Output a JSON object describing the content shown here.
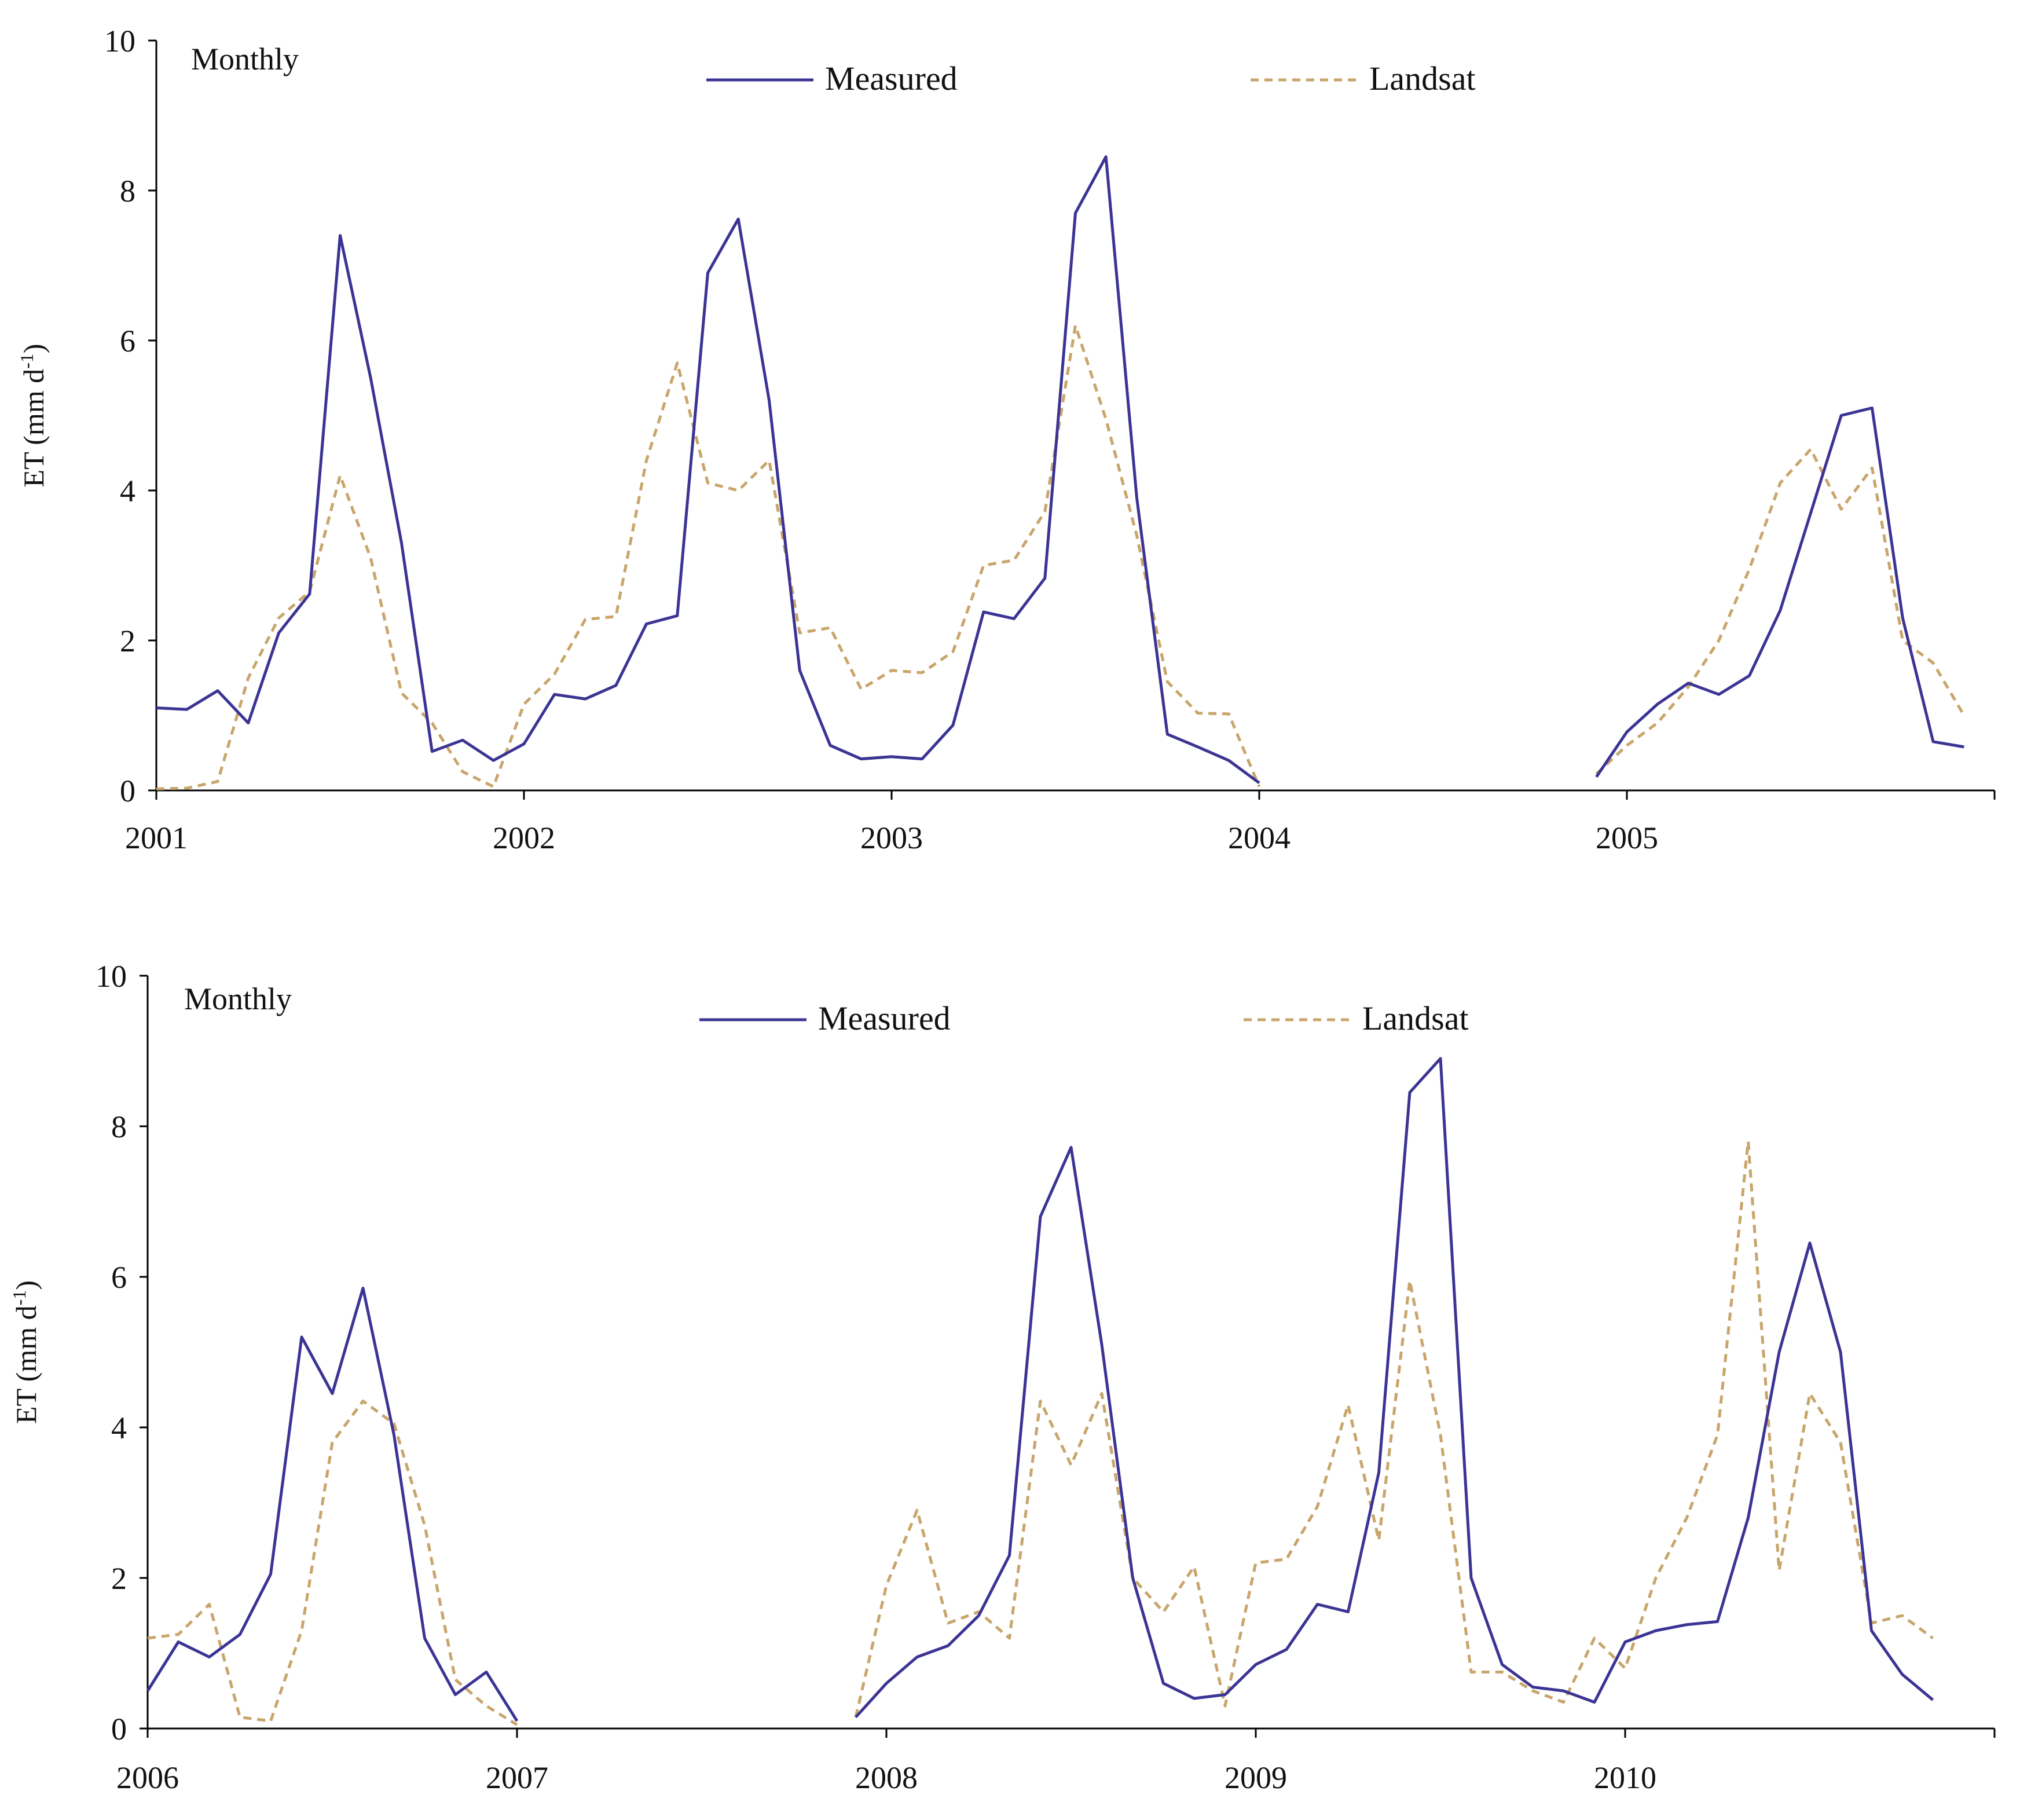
{
  "chart_data": [
    {
      "type": "line",
      "annotation": "Monthly",
      "ylabel": "ET (mm d",
      "ylabel_sup": "-1",
      "ylabel_close": ")",
      "ylim": [
        0,
        10
      ],
      "yticks": [
        0,
        2,
        4,
        6,
        8,
        10
      ],
      "xlim": [
        2001,
        2006
      ],
      "xticks": [
        2001,
        2002,
        2003,
        2004,
        2005
      ],
      "legend": [
        "Measured",
        "Landsat"
      ],
      "colors": {
        "Measured": "#3b3494",
        "Landsat": "#c8a56b"
      },
      "series": [
        {
          "name": "Measured",
          "style": "solid",
          "points": [
            [
              2001.0,
              1.1
            ],
            [
              2001.083,
              1.08
            ],
            [
              2001.167,
              1.33
            ],
            [
              2001.25,
              0.9
            ],
            [
              2001.333,
              2.1
            ],
            [
              2001.417,
              2.62
            ],
            [
              2001.5,
              7.4
            ],
            [
              2001.583,
              5.5
            ],
            [
              2001.667,
              3.3
            ],
            [
              2001.75,
              0.52
            ],
            [
              2001.833,
              0.67
            ],
            [
              2001.917,
              0.4
            ],
            [
              2002.0,
              0.62
            ],
            [
              2002.083,
              1.28
            ],
            [
              2002.167,
              1.22
            ],
            [
              2002.25,
              1.4
            ],
            [
              2002.333,
              2.22
            ],
            [
              2002.417,
              2.33
            ],
            [
              2002.5,
              6.9
            ],
            [
              2002.583,
              7.62
            ],
            [
              2002.667,
              5.2
            ],
            [
              2002.75,
              1.6
            ],
            [
              2002.833,
              0.6
            ],
            [
              2002.917,
              0.42
            ],
            [
              2003.0,
              0.45
            ],
            [
              2003.083,
              0.42
            ],
            [
              2003.167,
              0.87
            ],
            [
              2003.25,
              2.38
            ],
            [
              2003.333,
              2.29
            ],
            [
              2003.417,
              2.83
            ],
            [
              2003.5,
              7.7
            ],
            [
              2003.583,
              8.45
            ],
            [
              2003.667,
              3.9
            ],
            [
              2003.75,
              0.75
            ],
            [
              2003.833,
              0.58
            ],
            [
              2003.917,
              0.4
            ],
            [
              2004.0,
              0.1
            ],
            null,
            [
              2004.917,
              0.18
            ],
            [
              2005.0,
              0.78
            ],
            [
              2005.083,
              1.15
            ],
            [
              2005.167,
              1.43
            ],
            [
              2005.25,
              1.28
            ],
            [
              2005.333,
              1.53
            ],
            [
              2005.417,
              2.4
            ],
            [
              2005.5,
              3.7
            ],
            [
              2005.583,
              5.0
            ],
            [
              2005.667,
              5.1
            ],
            [
              2005.75,
              2.3
            ],
            [
              2005.833,
              0.65
            ],
            [
              2005.917,
              0.58
            ]
          ]
        },
        {
          "name": "Landsat",
          "style": "dashed",
          "points": [
            [
              2001.0,
              0.02
            ],
            [
              2001.083,
              0.03
            ],
            [
              2001.167,
              0.12
            ],
            [
              2001.25,
              1.5
            ],
            [
              2001.333,
              2.3
            ],
            [
              2001.417,
              2.65
            ],
            [
              2001.5,
              4.2
            ],
            [
              2001.583,
              3.1
            ],
            [
              2001.667,
              1.3
            ],
            [
              2001.75,
              0.9
            ],
            [
              2001.833,
              0.25
            ],
            [
              2001.917,
              0.05
            ],
            [
              2002.0,
              1.15
            ],
            [
              2002.083,
              1.55
            ],
            [
              2002.167,
              2.28
            ],
            [
              2002.25,
              2.32
            ],
            [
              2002.333,
              4.4
            ],
            [
              2002.417,
              5.7
            ],
            [
              2002.5,
              4.1
            ],
            [
              2002.583,
              4.0
            ],
            [
              2002.667,
              4.4
            ],
            [
              2002.75,
              2.1
            ],
            [
              2002.833,
              2.17
            ],
            [
              2002.917,
              1.35
            ],
            [
              2003.0,
              1.6
            ],
            [
              2003.083,
              1.57
            ],
            [
              2003.167,
              1.85
            ],
            [
              2003.25,
              3.0
            ],
            [
              2003.333,
              3.07
            ],
            [
              2003.417,
              3.72
            ],
            [
              2003.5,
              6.2
            ],
            [
              2003.583,
              4.95
            ],
            [
              2003.667,
              3.4
            ],
            [
              2003.75,
              1.45
            ],
            [
              2003.833,
              1.03
            ],
            [
              2003.917,
              1.02
            ],
            [
              2004.0,
              0.05
            ],
            null,
            [
              2004.917,
              0.22
            ],
            [
              2005.0,
              0.6
            ],
            [
              2005.083,
              0.9
            ],
            [
              2005.167,
              1.38
            ],
            [
              2005.25,
              2.0
            ],
            [
              2005.333,
              2.95
            ],
            [
              2005.417,
              4.1
            ],
            [
              2005.5,
              4.55
            ],
            [
              2005.583,
              3.75
            ],
            [
              2005.667,
              4.3
            ],
            [
              2005.75,
              2.0
            ],
            [
              2005.833,
              1.7
            ],
            [
              2005.917,
              1.0
            ]
          ]
        }
      ]
    },
    {
      "type": "line",
      "annotation": "Monthly",
      "ylabel": "ET (mm d",
      "ylabel_sup": "-1",
      "ylabel_close": ")",
      "ylim": [
        0,
        10
      ],
      "yticks": [
        0,
        2,
        4,
        6,
        8,
        10
      ],
      "xlim": [
        2006,
        2011
      ],
      "xticks": [
        2006,
        2007,
        2008,
        2009,
        2010
      ],
      "legend": [
        "Measured",
        "Landsat"
      ],
      "colors": {
        "Measured": "#3b3494",
        "Landsat": "#c8a56b"
      },
      "series": [
        {
          "name": "Measured",
          "style": "solid",
          "points": [
            [
              2006.0,
              0.5
            ],
            [
              2006.083,
              1.15
            ],
            [
              2006.167,
              0.95
            ],
            [
              2006.25,
              1.25
            ],
            [
              2006.333,
              2.05
            ],
            [
              2006.417,
              5.2
            ],
            [
              2006.5,
              4.45
            ],
            [
              2006.583,
              5.85
            ],
            [
              2006.667,
              3.9
            ],
            [
              2006.75,
              1.2
            ],
            [
              2006.833,
              0.45
            ],
            [
              2006.917,
              0.75
            ],
            [
              2007.0,
              0.1
            ],
            null,
            [
              2007.917,
              0.15
            ],
            [
              2008.0,
              0.6
            ],
            [
              2008.083,
              0.95
            ],
            [
              2008.167,
              1.1
            ],
            [
              2008.25,
              1.5
            ],
            [
              2008.333,
              2.3
            ],
            [
              2008.417,
              6.8
            ],
            [
              2008.5,
              7.72
            ],
            [
              2008.583,
              5.1
            ],
            [
              2008.667,
              2.0
            ],
            [
              2008.75,
              0.6
            ],
            [
              2008.833,
              0.4
            ],
            [
              2008.917,
              0.45
            ],
            [
              2009.0,
              0.85
            ],
            [
              2009.083,
              1.05
            ],
            [
              2009.167,
              1.65
            ],
            [
              2009.25,
              1.55
            ],
            [
              2009.333,
              3.4
            ],
            [
              2009.417,
              8.45
            ],
            [
              2009.5,
              8.9
            ],
            [
              2009.583,
              2.0
            ],
            [
              2009.667,
              0.85
            ],
            [
              2009.75,
              0.55
            ],
            [
              2009.833,
              0.5
            ],
            [
              2009.917,
              0.35
            ],
            [
              2010.0,
              1.15
            ],
            [
              2010.083,
              1.3
            ],
            [
              2010.167,
              1.38
            ],
            [
              2010.25,
              1.42
            ],
            [
              2010.333,
              2.8
            ],
            [
              2010.417,
              5.0
            ],
            [
              2010.5,
              6.45
            ],
            [
              2010.583,
              5.0
            ],
            [
              2010.667,
              1.3
            ],
            [
              2010.75,
              0.72
            ],
            [
              2010.833,
              0.38
            ]
          ]
        },
        {
          "name": "Landsat",
          "style": "dashed",
          "points": [
            [
              2006.0,
              1.2
            ],
            [
              2006.083,
              1.25
            ],
            [
              2006.167,
              1.65
            ],
            [
              2006.25,
              0.15
            ],
            [
              2006.333,
              0.1
            ],
            [
              2006.417,
              1.3
            ],
            [
              2006.5,
              3.8
            ],
            [
              2006.583,
              4.35
            ],
            [
              2006.667,
              4.05
            ],
            [
              2006.75,
              2.7
            ],
            [
              2006.833,
              0.65
            ],
            [
              2006.917,
              0.3
            ],
            [
              2007.0,
              0.05
            ],
            null,
            [
              2007.917,
              0.15
            ],
            [
              2008.0,
              1.9
            ],
            [
              2008.083,
              2.9
            ],
            [
              2008.167,
              1.4
            ],
            [
              2008.25,
              1.55
            ],
            [
              2008.333,
              1.2
            ],
            [
              2008.417,
              4.35
            ],
            [
              2008.5,
              3.5
            ],
            [
              2008.583,
              4.45
            ],
            [
              2008.667,
              2.0
            ],
            [
              2008.75,
              1.55
            ],
            [
              2008.833,
              2.15
            ],
            [
              2008.917,
              0.3
            ],
            [
              2009.0,
              2.2
            ],
            [
              2009.083,
              2.25
            ],
            [
              2009.167,
              2.95
            ],
            [
              2009.25,
              4.3
            ],
            [
              2009.333,
              2.5
            ],
            [
              2009.417,
              5.95
            ],
            [
              2009.5,
              3.9
            ],
            [
              2009.583,
              0.75
            ],
            [
              2009.667,
              0.75
            ],
            [
              2009.75,
              0.5
            ],
            [
              2009.833,
              0.35
            ],
            [
              2009.917,
              1.2
            ],
            [
              2010.0,
              0.8
            ],
            [
              2010.083,
              2.0
            ],
            [
              2010.167,
              2.8
            ],
            [
              2010.25,
              3.9
            ],
            [
              2010.333,
              7.8
            ],
            [
              2010.417,
              2.1
            ],
            [
              2010.5,
              4.45
            ],
            [
              2010.583,
              3.8
            ],
            [
              2010.667,
              1.4
            ],
            [
              2010.75,
              1.5
            ],
            [
              2010.833,
              1.2
            ]
          ]
        }
      ]
    }
  ]
}
